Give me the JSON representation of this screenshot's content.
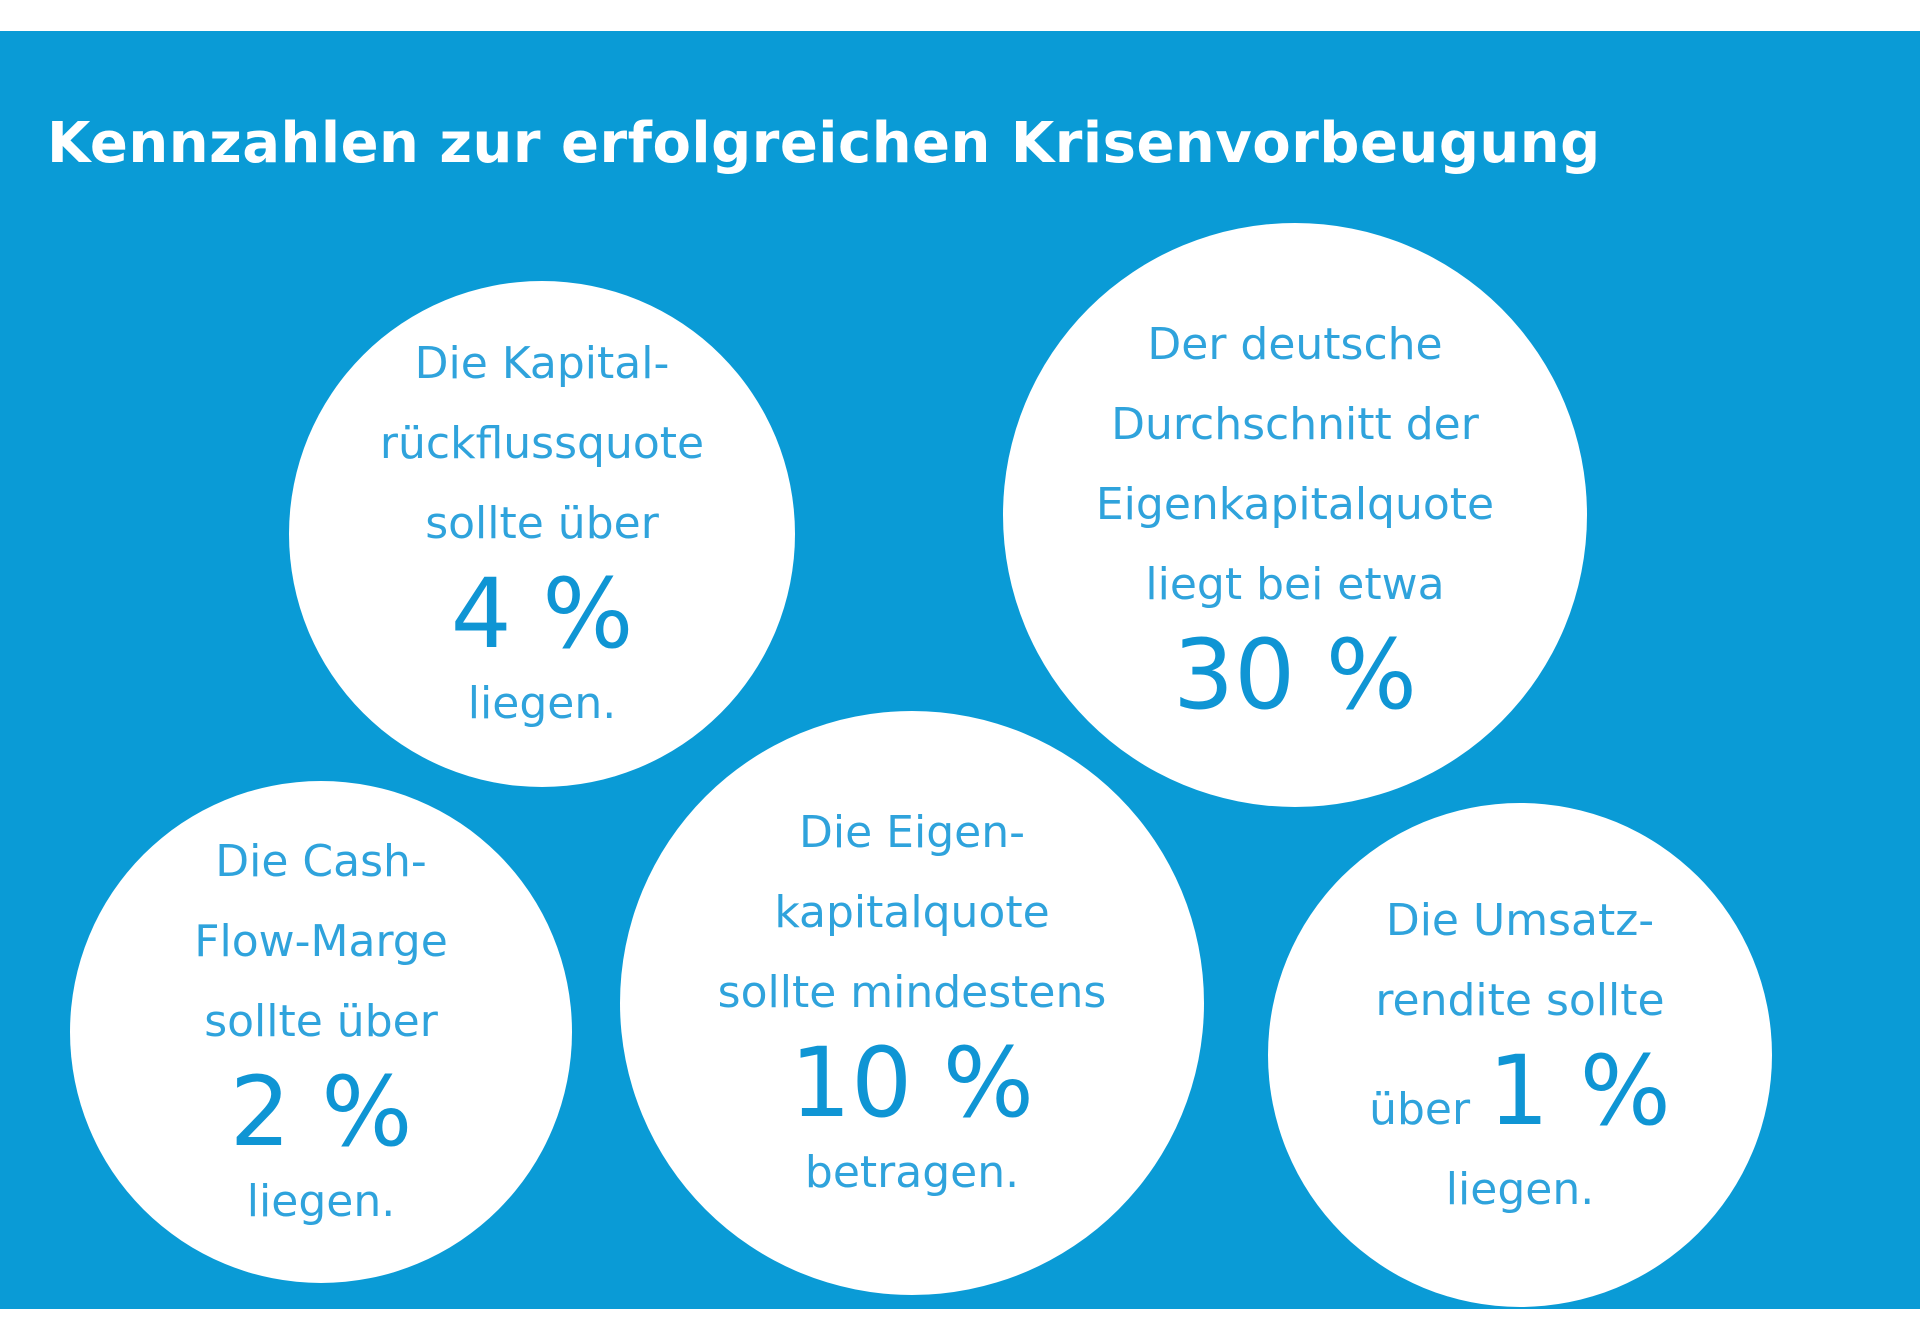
{
  "title": "Kennzahlen zur erfolgreichen Krisenvorbeugung",
  "colors": {
    "background": "#0a9bd6",
    "circle": "#ffffff",
    "text": "#2fa3dc"
  },
  "bubbles": [
    {
      "lines": [
        "Die Kapital-",
        "rückflussquote",
        "sollte über"
      ],
      "value": "4 %",
      "after": "liegen."
    },
    {
      "lines": [
        "Der deutsche",
        "Durchschnitt der",
        "Eigenkapitalquote",
        "liegt bei etwa"
      ],
      "value": "30 %",
      "after": ""
    },
    {
      "lines": [
        "Die Cash-",
        "Flow-Marge",
        "sollte über"
      ],
      "value": "2 %",
      "after": "liegen."
    },
    {
      "lines": [
        "Die Eigen-",
        "kapitalquote",
        "sollte mindestens"
      ],
      "value": "10 %",
      "after": "betragen."
    },
    {
      "lines": [
        "Die Umsatz-",
        "rendite sollte"
      ],
      "prefix": "über",
      "value": "1 %",
      "after": "liegen."
    }
  ]
}
